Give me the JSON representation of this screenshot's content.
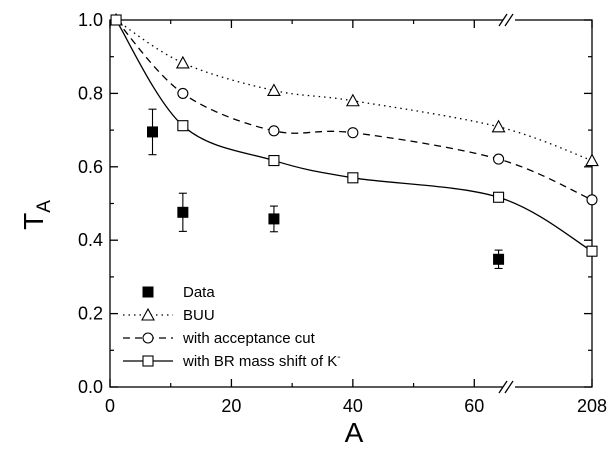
{
  "chart_data": {
    "type": "scatter",
    "xlabel": "A",
    "ylabel": {
      "main": "T",
      "sub": "A"
    },
    "x_ticks": [
      "0",
      "20",
      "40",
      "60",
      "208"
    ],
    "y_ticks": [
      "0.0",
      "0.2",
      "0.4",
      "0.6",
      "0.8",
      "1.0"
    ],
    "ylim": [
      0,
      1.0
    ],
    "xlim_left_segment": [
      0,
      70
    ],
    "x_break_between": [
      70,
      208
    ],
    "grid": false,
    "legend_position": "bottom-left",
    "series": [
      {
        "name": "Data",
        "style": "filled-square",
        "points": [
          {
            "x": 7,
            "y": 0.695,
            "err": 0.062
          },
          {
            "x": 12,
            "y": 0.476,
            "err": 0.052
          },
          {
            "x": 27,
            "y": 0.458,
            "err": 0.035
          },
          {
            "x": 64,
            "y": 0.348,
            "err": 0.025
          }
        ]
      },
      {
        "name": "BUU",
        "style": "open-triangle-dotted",
        "points": [
          {
            "x": 1,
            "y": 1.0
          },
          {
            "x": 12,
            "y": 0.883
          },
          {
            "x": 27,
            "y": 0.808
          },
          {
            "x": 40,
            "y": 0.78
          },
          {
            "x": 64,
            "y": 0.709
          },
          {
            "x": 208,
            "y": 0.617
          }
        ]
      },
      {
        "name": "with acceptance cut",
        "style": "open-circle-dashed",
        "points": [
          {
            "x": 1,
            "y": 1.0
          },
          {
            "x": 12,
            "y": 0.8
          },
          {
            "x": 27,
            "y": 0.698
          },
          {
            "x": 40,
            "y": 0.693
          },
          {
            "x": 64,
            "y": 0.621
          },
          {
            "x": 208,
            "y": 0.51
          }
        ]
      },
      {
        "name": "with BR mass shift of K",
        "name_superscript": "-",
        "style": "open-square-solid",
        "points": [
          {
            "x": 1,
            "y": 1.0
          },
          {
            "x": 12,
            "y": 0.712
          },
          {
            "x": 27,
            "y": 0.617
          },
          {
            "x": 40,
            "y": 0.57
          },
          {
            "x": 64,
            "y": 0.517
          },
          {
            "x": 208,
            "y": 0.37
          }
        ]
      }
    ]
  }
}
